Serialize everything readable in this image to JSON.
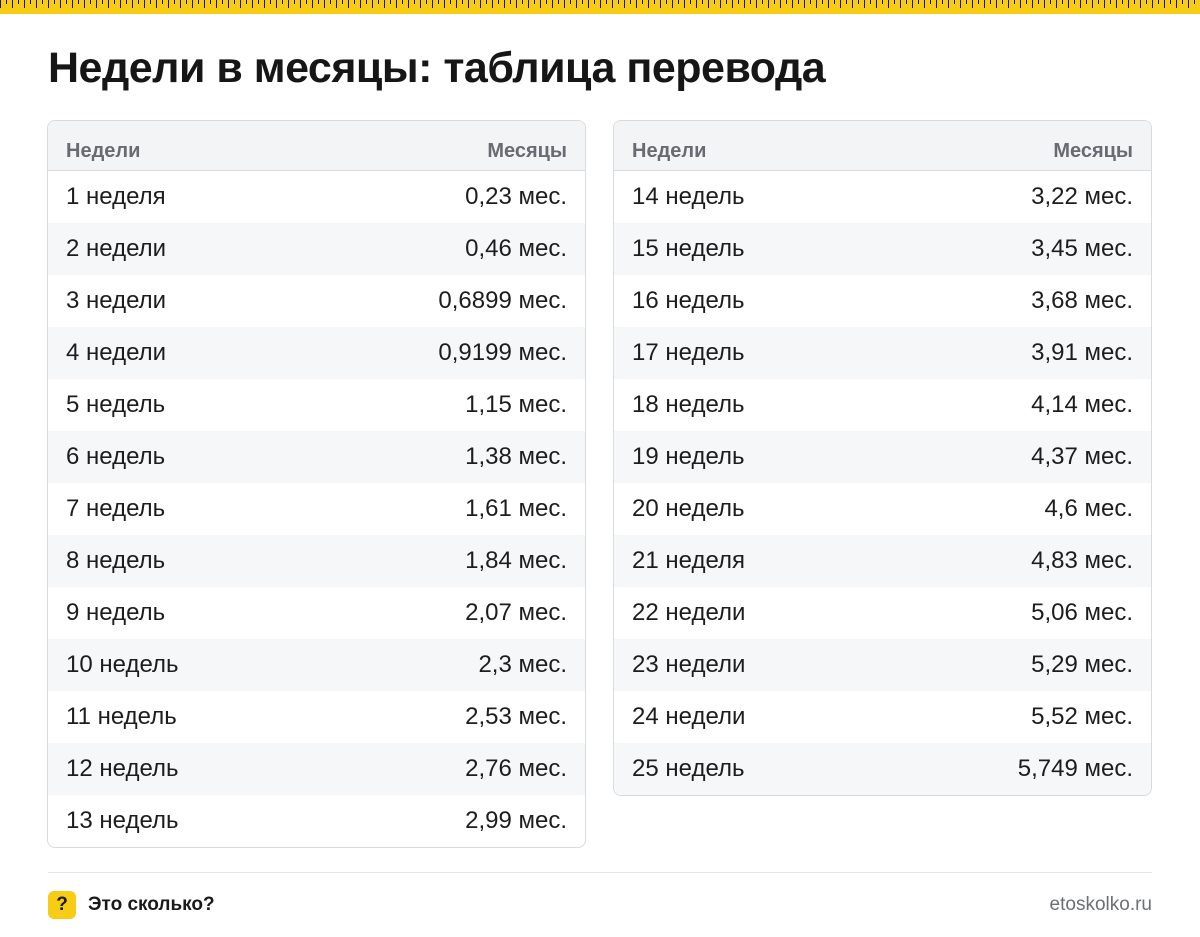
{
  "title": "Недели в месяцы: таблица перевода",
  "tables": [
    {
      "header": {
        "weeks": "Недели",
        "months": "Месяцы"
      },
      "rows": [
        {
          "weeks": "1 неделя",
          "months": "0,23 мес."
        },
        {
          "weeks": "2 недели",
          "months": "0,46 мес."
        },
        {
          "weeks": "3 недели",
          "months": "0,6899 мес."
        },
        {
          "weeks": "4 недели",
          "months": "0,9199 мес."
        },
        {
          "weeks": "5 недель",
          "months": "1,15 мес."
        },
        {
          "weeks": "6 недель",
          "months": "1,38 мес."
        },
        {
          "weeks": "7 недель",
          "months": "1,61 мес."
        },
        {
          "weeks": "8 недель",
          "months": "1,84 мес."
        },
        {
          "weeks": "9 недель",
          "months": "2,07 мес."
        },
        {
          "weeks": "10 недель",
          "months": "2,3 мес."
        },
        {
          "weeks": "11 недель",
          "months": "2,53 мес."
        },
        {
          "weeks": "12 недель",
          "months": "2,76 мес."
        },
        {
          "weeks": "13 недель",
          "months": "2,99 мес."
        }
      ]
    },
    {
      "header": {
        "weeks": "Недели",
        "months": "Месяцы"
      },
      "rows": [
        {
          "weeks": "14 недель",
          "months": "3,22 мес."
        },
        {
          "weeks": "15 недель",
          "months": "3,45 мес."
        },
        {
          "weeks": "16 недель",
          "months": "3,68 мес."
        },
        {
          "weeks": "17 недель",
          "months": "3,91 мес."
        },
        {
          "weeks": "18 недель",
          "months": "4,14 мес."
        },
        {
          "weeks": "19 недель",
          "months": "4,37 мес."
        },
        {
          "weeks": "20 недель",
          "months": "4,6 мес."
        },
        {
          "weeks": "21 неделя",
          "months": "4,83 мес."
        },
        {
          "weeks": "22 недели",
          "months": "5,06 мес."
        },
        {
          "weeks": "23 недели",
          "months": "5,29 мес."
        },
        {
          "weeks": "24 недели",
          "months": "5,52 мес."
        },
        {
          "weeks": "25 недель",
          "months": "5,749 мес."
        }
      ]
    }
  ],
  "footer": {
    "logo_symbol": "?",
    "brand": "Это сколько?",
    "site": "etoskolko.ru"
  },
  "colors": {
    "accent": "#f7cc15",
    "header_bg": "#f3f4f6",
    "stripe_bg": "#f6f7f9",
    "border": "#d9dadc"
  },
  "icons": {
    "logo": "question-mark-icon",
    "top_border": "ruler-stripe"
  }
}
